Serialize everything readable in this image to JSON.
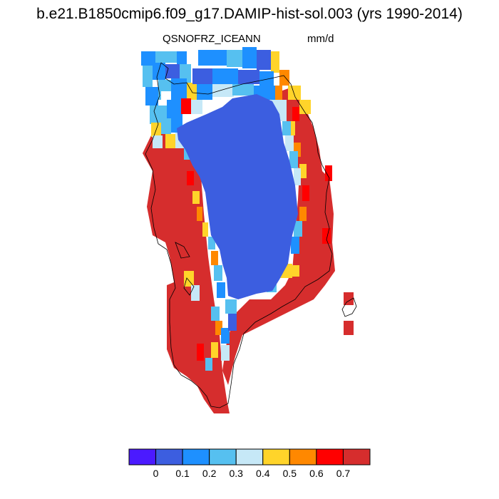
{
  "title": "b.e21.B1850cmip6.f09_g17.DAMIP-hist-sol.003 (yrs 1990-2014)",
  "variable": "QSNOFRZ_ICE",
  "season": "ANN",
  "units": "mm/d",
  "colorbar": {
    "colors": [
      "#4b1aff",
      "#3c5ee0",
      "#1e90ff",
      "#56c0f0",
      "#c6e8f7",
      "#ffd42a",
      "#ff8800",
      "#ff0000",
      "#d62d2d"
    ],
    "tick_labels": [
      "0",
      "0.1",
      "0.2",
      "0.3",
      "0.4",
      "0.5",
      "0.6",
      "0.7"
    ]
  },
  "map": {
    "region": "Greenland",
    "interior_value_class": 1,
    "margin_value_class": 8
  }
}
